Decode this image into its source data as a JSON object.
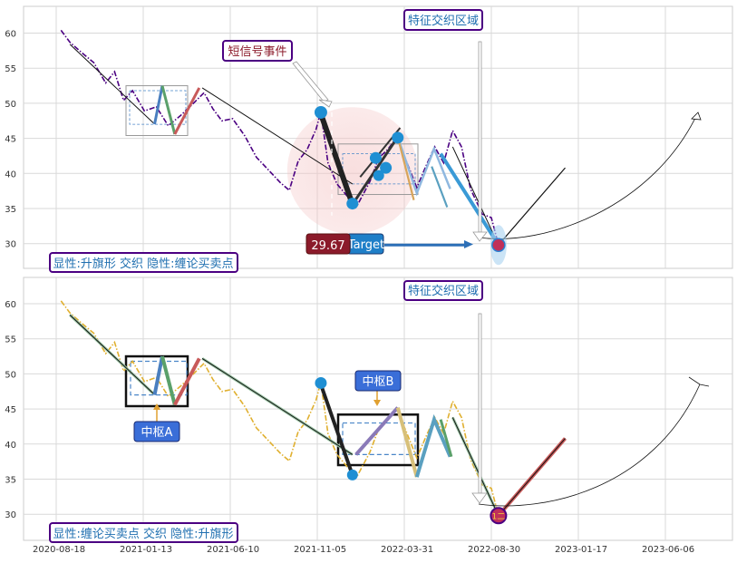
{
  "chart_data": [
    {
      "type": "line",
      "title": "",
      "x_tick_labels": [
        "2020-08-18",
        "2021-01-13",
        "2021-06-10",
        "2021-11-05",
        "2022-03-31",
        "2022-08-30",
        "2023-01-17",
        "2023-06-06"
      ],
      "y_ticks": [
        30,
        35,
        40,
        45,
        50,
        55,
        60
      ],
      "ylim": [
        26.5,
        63.5
      ],
      "grid": true,
      "series": [
        {
          "style": "dash-dot purple",
          "points": [
            [
              "2020-08-26",
              60.4
            ],
            [
              "2020-09-10",
              58.7
            ],
            [
              "2020-09-30",
              57.2
            ],
            [
              "2020-10-20",
              55.8
            ],
            [
              "2020-11-09",
              52.9
            ],
            [
              "2020-11-24",
              54.5
            ],
            [
              "2020-12-09",
              50.4
            ],
            [
              "2020-12-24",
              51.8
            ],
            [
              "2021-01-13",
              48.9
            ],
            [
              "2021-02-02",
              49.5
            ],
            [
              "2021-02-22",
              46.8
            ],
            [
              "2021-03-14",
              48.2
            ],
            [
              "2021-04-03",
              49.8
            ],
            [
              "2021-04-23",
              51.5
            ],
            [
              "2021-05-08",
              49.2
            ],
            [
              "2021-05-23",
              47.5
            ],
            [
              "2021-06-10",
              47.8
            ],
            [
              "2021-06-30",
              45.4
            ],
            [
              "2021-07-20",
              42.3
            ],
            [
              "2021-08-09",
              40.5
            ],
            [
              "2021-08-29",
              38.7
            ],
            [
              "2021-09-13",
              37.6
            ],
            [
              "2021-09-28",
              41.8
            ],
            [
              "2021-10-13",
              43.4
            ],
            [
              "2021-10-28",
              46.3
            ],
            [
              "2021-11-05",
              48.8
            ],
            [
              "2021-11-17",
              41.5
            ],
            [
              "2021-12-02",
              38.5
            ],
            [
              "2021-12-22",
              36.5
            ],
            [
              "2022-01-06",
              35.6
            ],
            [
              "2022-01-26",
              38.8
            ],
            [
              "2022-02-10",
              42.2
            ],
            [
              "2022-02-25",
              43.4
            ],
            [
              "2022-03-12",
              45.1
            ],
            [
              "2022-03-31",
              41.2
            ],
            [
              "2022-04-15",
              38.0
            ],
            [
              "2022-04-30",
              41.0
            ],
            [
              "2022-05-15",
              43.8
            ],
            [
              "2022-05-30",
              41.5
            ],
            [
              "2022-06-14",
              46.1
            ],
            [
              "2022-06-29",
              43.8
            ],
            [
              "2022-07-14",
              37.8
            ],
            [
              "2022-08-03",
              34.2
            ],
            [
              "2022-08-18",
              33.7
            ],
            [
              "2022-08-30",
              29.8
            ]
          ]
        }
      ],
      "overlays": {
        "target_value_label": "29.67",
        "target_arrow_label": "Target",
        "pattern_label": "显性:升旗形 交织 隐性:缠论买卖点",
        "zone_label": "特征交织区域",
        "event_label": "短信号事件"
      }
    },
    {
      "type": "line",
      "title": "",
      "x_tick_labels": [
        "2020-08-18",
        "2021-01-13",
        "2021-06-10",
        "2021-11-05",
        "2022-03-31",
        "2022-08-30",
        "2023-01-17",
        "2023-06-06"
      ],
      "y_ticks": [
        30,
        35,
        40,
        45,
        50,
        55,
        60
      ],
      "ylim": [
        26.5,
        63.5
      ],
      "grid": true,
      "series": [
        {
          "style": "dash-dot gold",
          "points": [
            [
              "2020-08-26",
              60.4
            ],
            [
              "2020-09-10",
              58.7
            ],
            [
              "2020-09-30",
              57.2
            ],
            [
              "2020-10-20",
              55.8
            ],
            [
              "2020-11-09",
              52.9
            ],
            [
              "2020-11-24",
              54.5
            ],
            [
              "2020-12-09",
              50.4
            ],
            [
              "2020-12-24",
              51.8
            ],
            [
              "2021-01-13",
              48.9
            ],
            [
              "2021-02-02",
              49.5
            ],
            [
              "2021-02-22",
              46.8
            ],
            [
              "2021-03-14",
              48.2
            ],
            [
              "2021-04-03",
              49.8
            ],
            [
              "2021-04-23",
              51.5
            ],
            [
              "2021-05-08",
              49.2
            ],
            [
              "2021-05-23",
              47.5
            ],
            [
              "2021-06-10",
              47.8
            ],
            [
              "2021-06-30",
              45.4
            ],
            [
              "2021-07-20",
              42.3
            ],
            [
              "2021-08-09",
              40.5
            ],
            [
              "2021-08-29",
              38.7
            ],
            [
              "2021-09-13",
              37.6
            ],
            [
              "2021-09-28",
              41.8
            ],
            [
              "2021-10-13",
              43.4
            ],
            [
              "2021-10-28",
              46.3
            ],
            [
              "2021-11-05",
              48.8
            ],
            [
              "2021-11-17",
              41.5
            ],
            [
              "2021-12-02",
              38.5
            ],
            [
              "2021-12-22",
              36.5
            ],
            [
              "2022-01-06",
              35.6
            ],
            [
              "2022-01-26",
              38.8
            ],
            [
              "2022-02-10",
              42.2
            ],
            [
              "2022-02-25",
              43.4
            ],
            [
              "2022-03-12",
              45.1
            ],
            [
              "2022-03-31",
              41.2
            ],
            [
              "2022-04-15",
              38.0
            ],
            [
              "2022-04-30",
              41.0
            ],
            [
              "2022-05-15",
              43.8
            ],
            [
              "2022-05-30",
              41.5
            ],
            [
              "2022-06-14",
              46.1
            ],
            [
              "2022-06-29",
              43.8
            ],
            [
              "2022-07-14",
              37.8
            ],
            [
              "2022-08-03",
              34.2
            ],
            [
              "2022-08-18",
              33.7
            ],
            [
              "2022-08-30",
              29.8
            ]
          ]
        }
      ],
      "overlays": {
        "pivot_a_label": "中枢A",
        "pivot_b_label": "中枢B",
        "pattern_label": "显性:缠论买卖点 交织 隐性:升旗形",
        "zone_label": "特征交织区域",
        "marker_label": "1二"
      }
    }
  ]
}
